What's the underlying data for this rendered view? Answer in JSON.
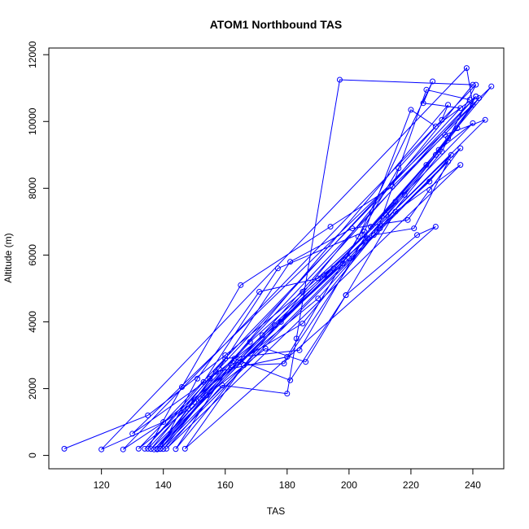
{
  "chart_data": {
    "type": "scatter",
    "title": "ATOM1 Northbound TAS",
    "xlabel": "TAS",
    "ylabel": "Altitude (m)",
    "xlim": [
      103,
      250
    ],
    "ylim": [
      -400,
      12200
    ],
    "x_ticks": [
      120,
      140,
      160,
      180,
      200,
      220,
      240
    ],
    "y_ticks": [
      0,
      2000,
      4000,
      6000,
      8000,
      10000,
      12000
    ],
    "grid": false,
    "legend": "none",
    "series_color": "#0000FF",
    "marker": "open-circle",
    "connected": true,
    "points": [
      [
        108,
        200
      ],
      [
        135,
        1200
      ],
      [
        160,
        3000
      ],
      [
        185,
        4900
      ],
      [
        205,
        6600
      ],
      [
        225,
        8700
      ],
      [
        240,
        10500
      ],
      [
        238,
        11600
      ],
      [
        120,
        180
      ],
      [
        140,
        1000
      ],
      [
        165,
        2800
      ],
      [
        190,
        4700
      ],
      [
        210,
        6800
      ],
      [
        230,
        9100
      ],
      [
        241,
        11100
      ],
      [
        127,
        180
      ],
      [
        150,
        1600
      ],
      [
        172,
        3600
      ],
      [
        195,
        5600
      ],
      [
        215,
        7600
      ],
      [
        232,
        9500
      ],
      [
        246,
        11050
      ],
      [
        130,
        650
      ],
      [
        155,
        2300
      ],
      [
        178,
        4000
      ],
      [
        200,
        5900
      ],
      [
        218,
        7800
      ],
      [
        235,
        9800
      ],
      [
        241,
        10750
      ],
      [
        132,
        200
      ],
      [
        148,
        1400
      ],
      [
        168,
        3400
      ],
      [
        192,
        5400
      ],
      [
        212,
        7200
      ],
      [
        228,
        9000
      ],
      [
        242,
        10700
      ],
      [
        135,
        200
      ],
      [
        146,
        2050
      ],
      [
        165,
        5100
      ],
      [
        194,
        6850
      ],
      [
        214,
        8050
      ],
      [
        231,
        9600
      ],
      [
        244,
        10050
      ],
      [
        137,
        180
      ],
      [
        152,
        1700
      ],
      [
        176,
        3900
      ],
      [
        198,
        5750
      ],
      [
        216,
        8600
      ],
      [
        230,
        10050
      ],
      [
        232,
        10500
      ],
      [
        138,
        180
      ],
      [
        158,
        2600
      ],
      [
        181,
        5800
      ],
      [
        201,
        6800
      ],
      [
        219,
        7050
      ],
      [
        226,
        7950
      ],
      [
        236,
        9200
      ],
      [
        139,
        190
      ],
      [
        151,
        2300
      ],
      [
        171,
        4900
      ],
      [
        190,
        5300
      ],
      [
        208,
        6600
      ],
      [
        221,
        6800
      ],
      [
        232,
        8800
      ],
      [
        140,
        190
      ],
      [
        154,
        1800
      ],
      [
        173,
        3200
      ],
      [
        186,
        2800
      ],
      [
        199,
        4800
      ],
      [
        215,
        7300
      ],
      [
        236,
        8700
      ],
      [
        141,
        200
      ],
      [
        159,
        2100
      ],
      [
        180,
        1850
      ],
      [
        183,
        3500
      ],
      [
        197,
        11250
      ],
      [
        240,
        11100
      ],
      [
        144,
        190
      ],
      [
        163,
        2900
      ],
      [
        181,
        2250
      ],
      [
        199,
        4800
      ],
      [
        222,
        6600
      ],
      [
        228,
        6850
      ],
      [
        147,
        200
      ],
      [
        166,
        2700
      ],
      [
        179,
        2750
      ],
      [
        206,
        6500
      ],
      [
        226,
        8200
      ],
      [
        233,
        9000
      ],
      [
        136,
        190
      ],
      [
        160,
        2900
      ],
      [
        184,
        3150
      ],
      [
        207,
        6850
      ],
      [
        229,
        9150
      ],
      [
        240,
        9950
      ],
      [
        138,
        200
      ],
      [
        157,
        2500
      ],
      [
        180,
        2950
      ],
      [
        203,
        6550
      ],
      [
        227,
        11200
      ],
      [
        224,
        10550
      ],
      [
        236,
        10400
      ],
      [
        134,
        200
      ],
      [
        153,
        2200
      ],
      [
        177,
        5600
      ],
      [
        205,
        6700
      ],
      [
        220,
        10350
      ],
      [
        228,
        9850
      ],
      [
        241,
        10750
      ],
      [
        139,
        200
      ],
      [
        162,
        2700
      ],
      [
        185,
        3950
      ],
      [
        209,
        6700
      ],
      [
        225,
        10950
      ],
      [
        239,
        10650
      ]
    ]
  }
}
